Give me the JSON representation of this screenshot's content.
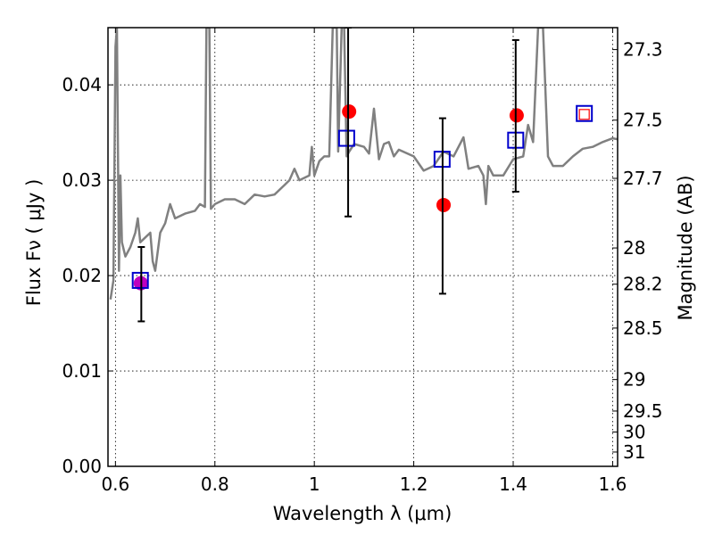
{
  "chart_data": {
    "type": "scatter",
    "title": "",
    "xlabel": "Wavelength  λ (μm)",
    "ylabel": "Flux  Fν ( μJy )",
    "ylabel_right": "Magnitude (AB)",
    "xlim": [
      0.585,
      1.61
    ],
    "ylim": [
      0.0,
      0.046
    ],
    "grid": true,
    "x_ticks": [
      0.6,
      0.8,
      1.0,
      1.2,
      1.4,
      1.6
    ],
    "x_tick_labels": [
      "0.6",
      "0.8",
      "1",
      "1.2",
      "1.4",
      "1.6"
    ],
    "y_ticks": [
      0.0,
      0.01,
      0.02,
      0.03,
      0.04
    ],
    "y_tick_labels": [
      "0.00",
      "0.01",
      "0.02",
      "0.03",
      "0.04"
    ],
    "right_ticks": [
      {
        "label": "27.3",
        "flux": 0.0437
      },
      {
        "label": "27.5",
        "flux": 0.0363
      },
      {
        "label": "27.7",
        "flux": 0.0302
      },
      {
        "label": "28",
        "flux": 0.0229
      },
      {
        "label": "28.2",
        "flux": 0.0191
      },
      {
        "label": "28.5",
        "flux": 0.0145
      },
      {
        "label": "29",
        "flux": 0.0091
      },
      {
        "label": "29.5",
        "flux": 0.0058
      },
      {
        "label": "30",
        "flux": 0.0036
      },
      {
        "label": "31",
        "flux": 0.0015
      }
    ],
    "series": [
      {
        "kind": "line",
        "color": "#808080",
        "points": [
          [
            0.59,
            0.0175
          ],
          [
            0.596,
            0.0195
          ],
          [
            0.6,
            0.044
          ],
          [
            0.603,
            0.046
          ],
          [
            0.607,
            0.0205
          ],
          [
            0.61,
            0.0305
          ],
          [
            0.613,
            0.0235
          ],
          [
            0.62,
            0.022
          ],
          [
            0.63,
            0.023
          ],
          [
            0.64,
            0.0245
          ],
          [
            0.645,
            0.026
          ],
          [
            0.65,
            0.0235
          ],
          [
            0.66,
            0.024
          ],
          [
            0.67,
            0.0245
          ],
          [
            0.675,
            0.0215
          ],
          [
            0.68,
            0.0205
          ],
          [
            0.69,
            0.0245
          ],
          [
            0.7,
            0.0255
          ],
          [
            0.705,
            0.0265
          ],
          [
            0.71,
            0.0275
          ],
          [
            0.72,
            0.026
          ],
          [
            0.74,
            0.0265
          ],
          [
            0.76,
            0.0268
          ],
          [
            0.77,
            0.0275
          ],
          [
            0.78,
            0.0272
          ],
          [
            0.783,
            0.046
          ],
          [
            0.789,
            0.046
          ],
          [
            0.792,
            0.027
          ],
          [
            0.8,
            0.0275
          ],
          [
            0.82,
            0.028
          ],
          [
            0.84,
            0.028
          ],
          [
            0.86,
            0.0275
          ],
          [
            0.88,
            0.0285
          ],
          [
            0.9,
            0.0283
          ],
          [
            0.92,
            0.0285
          ],
          [
            0.94,
            0.0295
          ],
          [
            0.95,
            0.03
          ],
          [
            0.96,
            0.0312
          ],
          [
            0.97,
            0.03
          ],
          [
            0.99,
            0.0305
          ],
          [
            0.995,
            0.0335
          ],
          [
            1.0,
            0.0305
          ],
          [
            1.01,
            0.032
          ],
          [
            1.02,
            0.0325
          ],
          [
            1.03,
            0.0325
          ],
          [
            1.037,
            0.046
          ],
          [
            1.045,
            0.046
          ],
          [
            1.048,
            0.033
          ],
          [
            1.055,
            0.046
          ],
          [
            1.06,
            0.046
          ],
          [
            1.065,
            0.0325
          ],
          [
            1.07,
            0.033
          ],
          [
            1.08,
            0.0338
          ],
          [
            1.1,
            0.0335
          ],
          [
            1.11,
            0.0328
          ],
          [
            1.12,
            0.0375
          ],
          [
            1.13,
            0.0322
          ],
          [
            1.14,
            0.0338
          ],
          [
            1.15,
            0.034
          ],
          [
            1.16,
            0.0325
          ],
          [
            1.17,
            0.0332
          ],
          [
            1.2,
            0.0325
          ],
          [
            1.22,
            0.031
          ],
          [
            1.24,
            0.0315
          ],
          [
            1.26,
            0.033
          ],
          [
            1.28,
            0.0325
          ],
          [
            1.3,
            0.0345
          ],
          [
            1.31,
            0.0312
          ],
          [
            1.33,
            0.0315
          ],
          [
            1.34,
            0.0305
          ],
          [
            1.345,
            0.0275
          ],
          [
            1.35,
            0.0315
          ],
          [
            1.36,
            0.0305
          ],
          [
            1.38,
            0.0305
          ],
          [
            1.4,
            0.0322
          ],
          [
            1.42,
            0.0325
          ],
          [
            1.43,
            0.0358
          ],
          [
            1.44,
            0.034
          ],
          [
            1.45,
            0.046
          ],
          [
            1.46,
            0.046
          ],
          [
            1.47,
            0.0325
          ],
          [
            1.48,
            0.0315
          ],
          [
            1.5,
            0.0315
          ],
          [
            1.52,
            0.0325
          ],
          [
            1.54,
            0.0333
          ],
          [
            1.56,
            0.0335
          ],
          [
            1.58,
            0.034
          ],
          [
            1.6,
            0.0344
          ],
          [
            1.61,
            0.0343
          ]
        ]
      },
      {
        "kind": "points",
        "marker": "circle",
        "color": "#ff0000",
        "points": [
          [
            1.07,
            0.0372
          ],
          [
            1.26,
            0.0274
          ],
          [
            1.407,
            0.0368
          ]
        ]
      },
      {
        "kind": "points",
        "marker": "circle",
        "color": "#bf00bf",
        "points": [
          [
            0.651,
            0.0192
          ]
        ]
      },
      {
        "kind": "points",
        "marker": "square",
        "color": "#0000cc",
        "points": [
          [
            0.65,
            0.0195
          ],
          [
            1.065,
            0.0344
          ],
          [
            1.257,
            0.0322
          ],
          [
            1.405,
            0.0342
          ],
          [
            1.543,
            0.037
          ]
        ]
      },
      {
        "kind": "points",
        "marker": "square-small",
        "color": "#ff0000",
        "points": [
          [
            1.543,
            0.0369
          ]
        ]
      },
      {
        "kind": "errorbars",
        "color": "#000000",
        "bars": [
          {
            "x": 0.652,
            "low": 0.0152,
            "high": 0.023
          },
          {
            "x": 1.068,
            "low": 0.0262,
            "high": 0.046
          },
          {
            "x": 1.258,
            "low": 0.0181,
            "high": 0.0365
          },
          {
            "x": 1.405,
            "low": 0.0288,
            "high": 0.0447
          }
        ]
      }
    ]
  }
}
